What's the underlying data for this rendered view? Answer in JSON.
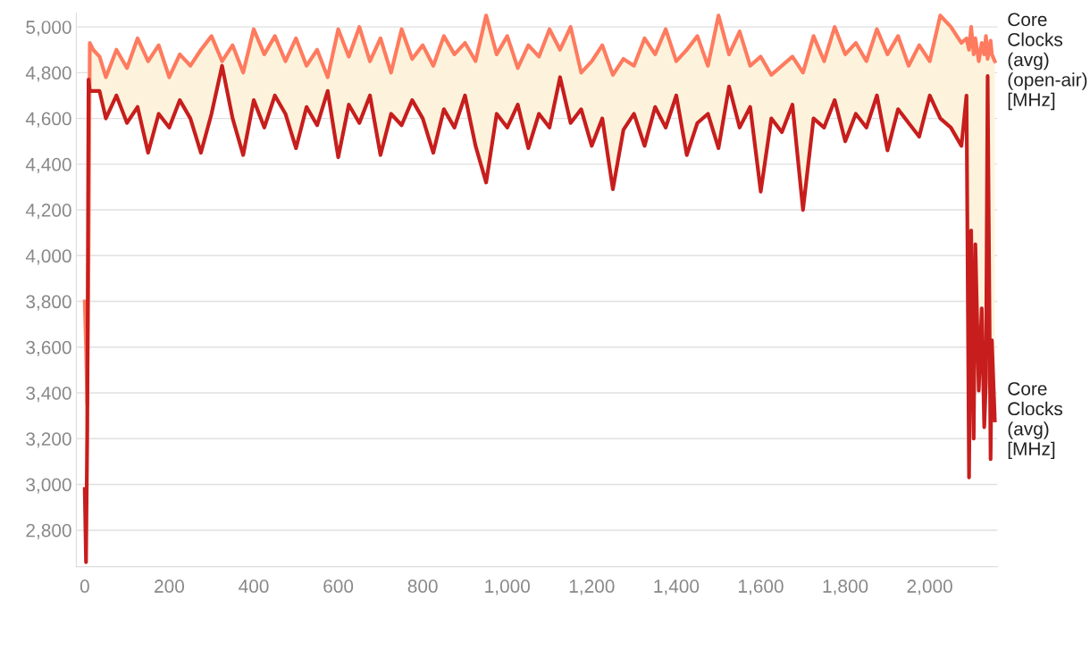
{
  "chart_data": {
    "type": "line",
    "x": [
      0,
      3,
      6,
      9,
      12,
      20,
      35,
      50,
      75,
      100,
      125,
      150,
      175,
      200,
      225,
      250,
      275,
      300,
      325,
      350,
      375,
      400,
      425,
      450,
      475,
      500,
      525,
      550,
      575,
      600,
      625,
      650,
      675,
      700,
      725,
      750,
      775,
      800,
      825,
      850,
      875,
      900,
      925,
      950,
      975,
      1000,
      1025,
      1050,
      1075,
      1100,
      1125,
      1150,
      1175,
      1200,
      1225,
      1250,
      1275,
      1300,
      1325,
      1350,
      1375,
      1400,
      1425,
      1450,
      1475,
      1500,
      1525,
      1550,
      1575,
      1600,
      1625,
      1650,
      1675,
      1700,
      1725,
      1750,
      1775,
      1800,
      1825,
      1850,
      1875,
      1900,
      1925,
      1950,
      1975,
      2000,
      2025,
      2050,
      2075,
      2087,
      2093,
      2098,
      2104,
      2108,
      2116,
      2123,
      2129,
      2133,
      2137,
      2144,
      2147,
      2154
    ],
    "series": [
      {
        "name": "Core Clocks (avg) (open-air) [MHz]",
        "color": "#fe7b5f",
        "values": [
          3800,
          3600,
          3350,
          4000,
          4930,
          4900,
          4870,
          4780,
          4900,
          4820,
          4950,
          4850,
          4920,
          4780,
          4880,
          4830,
          4900,
          4960,
          4850,
          4920,
          4800,
          4990,
          4880,
          4960,
          4850,
          4950,
          4830,
          4900,
          4780,
          4990,
          4870,
          5000,
          4850,
          4950,
          4800,
          4990,
          4860,
          4920,
          4830,
          4960,
          4880,
          4930,
          4850,
          5050,
          4880,
          4960,
          4820,
          4920,
          4870,
          4990,
          4900,
          5000,
          4800,
          4850,
          4920,
          4790,
          4860,
          4830,
          4950,
          4880,
          4990,
          4850,
          4900,
          4960,
          4830,
          5050,
          4880,
          4980,
          4830,
          4870,
          4790,
          4830,
          4870,
          4800,
          4960,
          4850,
          5000,
          4880,
          4930,
          4850,
          4990,
          4880,
          4960,
          4830,
          4920,
          4850,
          5050,
          5000,
          4930,
          4950,
          4900,
          5000,
          4880,
          4950,
          4850,
          4930,
          4880,
          4960,
          4860,
          4940,
          4880,
          4850
        ],
        "upper": [
          3800,
          3600,
          3350,
          4000,
          4930,
          4900,
          4870,
          4780,
          4900,
          4820,
          4950,
          4850,
          4920,
          4780,
          4880,
          4830,
          4900,
          4960,
          4850,
          4920,
          4800,
          4990,
          4880,
          4960,
          4850,
          4950,
          4830,
          4900,
          4780,
          4990,
          4870,
          5000,
          4850,
          4950,
          4800,
          4990,
          4860,
          4920,
          4830,
          4960,
          4880,
          4930,
          4850,
          5050,
          4880,
          4960,
          4820,
          4920,
          4870,
          4990,
          4900,
          5000,
          4800,
          4850,
          4920,
          4790,
          4860,
          4830,
          4950,
          4880,
          4990,
          4850,
          4900,
          4960,
          4830,
          5050,
          4880,
          4980,
          4830,
          4870,
          4790,
          4830,
          4870,
          4800,
          4960,
          4850,
          5000,
          4880,
          4930,
          4850,
          4990,
          4880,
          4960,
          4830,
          4920,
          4850,
          5050,
          5000,
          4930,
          4950,
          4900,
          5000,
          4880,
          4950,
          4850,
          4930,
          4880,
          4960,
          4860,
          4940,
          4880,
          4850
        ],
        "lower": [
          2980,
          2660,
          3250,
          4770,
          4720,
          4720,
          4720,
          4600,
          4700,
          4580,
          4650,
          4450,
          4620,
          4560,
          4680,
          4600,
          4450,
          4620,
          4830,
          4600,
          4440,
          4680,
          4560,
          4700,
          4620,
          4470,
          4650,
          4570,
          4720,
          4430,
          4660,
          4580,
          4700,
          4440,
          4620,
          4570,
          4680,
          4600,
          4450,
          4640,
          4560,
          4700,
          4480,
          4320,
          4620,
          4560,
          4660,
          4470,
          4620,
          4560,
          4780,
          4580,
          4640,
          4480,
          4600,
          4290,
          4550,
          4620,
          4480,
          4650,
          4560,
          4700,
          4440,
          4580,
          4620,
          4470,
          4740,
          4560,
          4650,
          4280,
          4600,
          4540,
          4660,
          4200,
          4600,
          4560,
          4680,
          4500,
          4620,
          4560,
          4700,
          4460,
          4640,
          4580,
          4520,
          4700,
          4600,
          4560,
          4480,
          4700,
          3030,
          4110,
          3200,
          4050,
          3410,
          3770,
          3250,
          3450,
          4785,
          3110,
          3630,
          3280
        ]
      },
      {
        "name": "Core Clocks (avg) [MHz]",
        "color": "#c71e1d",
        "values": [
          2980,
          2660,
          3250,
          4770,
          4720,
          4720,
          4720,
          4600,
          4700,
          4580,
          4650,
          4450,
          4620,
          4560,
          4680,
          4600,
          4450,
          4620,
          4830,
          4600,
          4440,
          4680,
          4560,
          4700,
          4620,
          4470,
          4650,
          4570,
          4720,
          4430,
          4660,
          4580,
          4700,
          4440,
          4620,
          4570,
          4680,
          4600,
          4450,
          4640,
          4560,
          4700,
          4480,
          4320,
          4620,
          4560,
          4660,
          4470,
          4620,
          4560,
          4780,
          4580,
          4640,
          4480,
          4600,
          4290,
          4550,
          4620,
          4480,
          4650,
          4560,
          4700,
          4440,
          4580,
          4620,
          4470,
          4740,
          4560,
          4650,
          4280,
          4600,
          4540,
          4660,
          4200,
          4600,
          4560,
          4680,
          4500,
          4620,
          4560,
          4700,
          4460,
          4640,
          4580,
          4520,
          4700,
          4600,
          4560,
          4480,
          4700,
          3030,
          4110,
          3200,
          4050,
          3410,
          3770,
          3250,
          3450,
          4785,
          3110,
          3630,
          3280
        ]
      }
    ],
    "xlim": [
      -20,
      2160
    ],
    "ylim": [
      2640,
      5060
    ],
    "xticks": [
      0,
      200,
      400,
      600,
      800,
      {
        "value": 1000,
        "label": "1,000"
      },
      {
        "value": 1200,
        "label": "1,200"
      },
      {
        "value": 1400,
        "label": "1,400"
      },
      {
        "value": 1600,
        "label": "1,600"
      },
      {
        "value": 1800,
        "label": "1,800"
      },
      {
        "value": 2000,
        "label": "2,000"
      }
    ],
    "yticks": [
      {
        "value": 2800,
        "label": "2,800"
      },
      {
        "value": 3000,
        "label": "3,000"
      },
      {
        "value": 3200,
        "label": "3,200"
      },
      {
        "value": 3400,
        "label": "3,400"
      },
      {
        "value": 3600,
        "label": "3,600"
      },
      {
        "value": 3800,
        "label": "3,800"
      },
      {
        "value": 4000,
        "label": "4,000"
      },
      {
        "value": 4200,
        "label": "4,200"
      },
      {
        "value": 4400,
        "label": "4,400"
      },
      {
        "value": 4600,
        "label": "4,600"
      },
      {
        "value": 4800,
        "label": "4,800"
      },
      {
        "value": 5000,
        "label": "5,000"
      }
    ],
    "grid": "y",
    "legend": false
  }
}
